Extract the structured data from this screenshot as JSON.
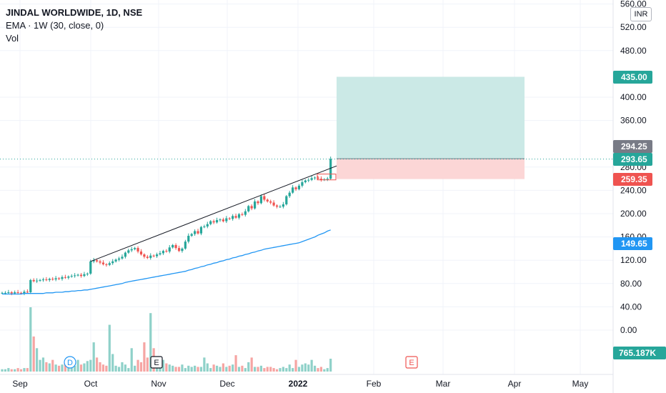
{
  "header": {
    "title": "JINDAL WORLDWIDE, 1D, NSE",
    "ema": "EMA · 1W (30, close, 0)",
    "vol": "Vol",
    "currency": "INR"
  },
  "colors": {
    "up": "#26a69a",
    "down": "#ef5350",
    "volume_up": "#8fd1c9",
    "volume_down": "#f6a5a3",
    "ema": "#2196f3",
    "target_zone": "#cbe9e6",
    "stop_zone": "#fcd6d6",
    "grid": "#f0f3fa"
  },
  "chart_data": {
    "type": "candlestick",
    "y_axis": {
      "ticks": [
        "560.00",
        "520.00",
        "480.00",
        "400.00",
        "360.00",
        "280.00",
        "240.00",
        "200.00",
        "160.00",
        "120.00",
        "80.00",
        "40.00",
        "0.00"
      ],
      "tick_values": [
        560,
        520,
        480,
        400,
        360,
        280,
        240,
        200,
        160,
        120,
        80,
        40,
        0
      ]
    },
    "x_axis": {
      "labels": [
        "Sep",
        "Oct",
        "Nov",
        "Dec",
        "2022",
        "Feb",
        "Mar",
        "Apr",
        "May"
      ]
    },
    "price_tags": [
      {
        "label": "435.00",
        "value": 435,
        "color": "#26a69a"
      },
      {
        "label": "294.25",
        "value": 294.25,
        "color": "#787b86"
      },
      {
        "label": "293.65",
        "value": 293.65,
        "color": "#26a69a"
      },
      {
        "label": "259.35",
        "value": 259.35,
        "color": "#ef5350"
      },
      {
        "label": "149.65",
        "value": 149.65,
        "color": "#2196f3"
      }
    ],
    "volume_tag": {
      "label": "765.187K",
      "color": "#26a69a"
    },
    "position": {
      "entry": 294.25,
      "target": 435,
      "stop": 259.35
    },
    "markers": [
      {
        "label": "D",
        "type": "dividend",
        "color": "#2196f3"
      },
      {
        "label": "E",
        "type": "earnings",
        "color": "#131722"
      },
      {
        "label": "E",
        "type": "earnings",
        "color": "#ef5350"
      }
    ],
    "closes": [
      64,
      64,
      65,
      63,
      65,
      64,
      63,
      66,
      65,
      86,
      84,
      85,
      86,
      87,
      86,
      88,
      87,
      89,
      88,
      91,
      90,
      92,
      93,
      94,
      95,
      93,
      96,
      97,
      118,
      120,
      118,
      116,
      113,
      112,
      115,
      118,
      121,
      123,
      126,
      133,
      137,
      139,
      141,
      135,
      130,
      126,
      124,
      128,
      127,
      130,
      132,
      136,
      135,
      142,
      146,
      141,
      136,
      140,
      152,
      162,
      165,
      170,
      166,
      177,
      178,
      182,
      187,
      185,
      189,
      190,
      187,
      192,
      191,
      196,
      193,
      199,
      198,
      204,
      213,
      209,
      221,
      218,
      230,
      224,
      221,
      219,
      214,
      212,
      212,
      216,
      230,
      236,
      245,
      242,
      248,
      254,
      257,
      258,
      261,
      262,
      260,
      258,
      259,
      260,
      294
    ],
    "volumes": [
      2,
      2,
      3,
      2,
      2,
      3,
      2,
      3,
      3,
      55,
      30,
      20,
      10,
      12,
      8,
      7,
      10,
      6,
      5,
      6,
      8,
      6,
      5,
      5,
      10,
      6,
      7,
      9,
      10,
      25,
      12,
      8,
      6,
      5,
      40,
      15,
      5,
      4,
      8,
      6,
      3,
      20,
      5,
      10,
      8,
      25,
      12,
      50,
      20,
      8,
      6,
      10,
      7,
      6,
      5,
      4,
      4,
      6,
      3,
      5,
      4,
      5,
      4,
      4,
      12,
      7,
      3,
      6,
      5,
      4,
      7,
      4,
      5,
      6,
      14,
      4,
      5,
      3,
      8,
      12,
      4,
      4,
      5,
      3,
      4,
      4,
      3,
      2,
      3,
      4,
      3,
      6,
      3,
      10,
      4,
      6,
      7,
      6,
      10,
      5,
      3,
      4,
      2,
      3,
      11
    ],
    "ema": [
      62,
      62,
      62,
      62,
      62,
      62,
      62,
      63,
      63,
      63,
      63,
      63,
      63,
      63,
      64,
      64,
      64,
      65,
      65,
      65,
      66,
      66,
      67,
      67,
      68,
      68,
      69,
      69,
      70,
      71,
      72,
      73,
      74,
      75,
      76,
      77,
      78,
      79,
      80,
      82,
      83,
      84,
      85,
      86,
      87,
      88,
      89,
      90,
      91,
      92,
      93,
      94,
      95,
      96,
      97,
      98,
      99,
      100,
      101,
      103,
      104,
      106,
      107,
      109,
      110,
      112,
      113,
      115,
      116,
      118,
      119,
      121,
      122,
      124,
      125,
      127,
      128,
      130,
      131,
      133,
      134,
      136,
      137,
      139,
      140,
      141,
      142,
      143,
      144,
      145,
      146,
      147,
      148,
      149,
      150,
      152,
      154,
      156,
      158,
      160,
      163,
      165,
      167,
      170,
      172
    ],
    "trendline": {
      "from": {
        "index": 28,
        "value": 118
      },
      "to": {
        "index": 105,
        "value": 282
      }
    }
  }
}
